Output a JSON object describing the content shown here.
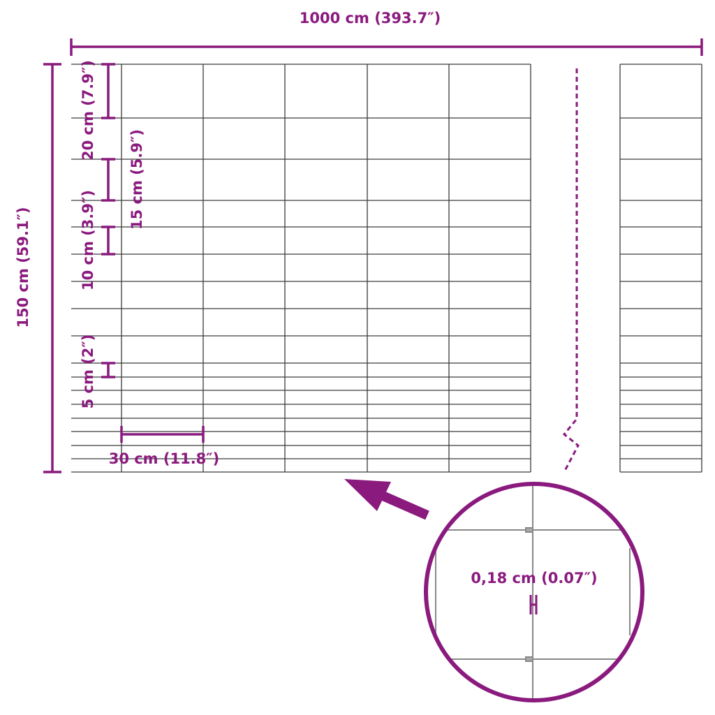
{
  "colors": {
    "accent": "#8a1a7e",
    "wire": "#3a3a3a"
  },
  "dimensions": {
    "width": "1000 cm (393.7″)",
    "height": "150 cm (59.1″)",
    "top_spacing": "20 cm (7.9″)",
    "upper_spacing": "15 cm (5.9″)",
    "middle_spacing": "10 cm (3.9″)",
    "bottom_spacing": "5 cm (2″)",
    "post_spacing": "30 cm (11.8″)",
    "wire_thickness": "0,18 cm (0.07″)"
  },
  "icons": {
    "pointer": "arrow-icon",
    "detail": "magnifier-circle"
  }
}
